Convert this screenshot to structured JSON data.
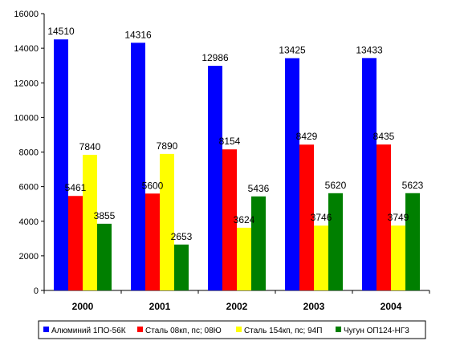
{
  "chart_data": {
    "type": "bar",
    "categories": [
      "2000",
      "2001",
      "2002",
      "2003",
      "2004"
    ],
    "series": [
      {
        "name": "Алюминий 1ПО-56К",
        "color": "#0000ff",
        "values": [
          14510,
          14316,
          12986,
          13425,
          13433
        ]
      },
      {
        "name": "Сталь 08кп, пс; 08Ю",
        "color": "#ff0000",
        "values": [
          5461,
          5600,
          8154,
          8429,
          8435
        ]
      },
      {
        "name": "Сталь 154кп, пс; 94П",
        "color": "#ffff00",
        "values": [
          7840,
          7890,
          3624,
          3746,
          3749
        ]
      },
      {
        "name": "Чугун ОП124-НГ3",
        "color": "#007f00",
        "values": [
          3855,
          2653,
          5436,
          5620,
          5623
        ]
      }
    ],
    "ylim": [
      0,
      16000
    ],
    "yticks": [
      0,
      2000,
      4000,
      6000,
      8000,
      10000,
      12000,
      14000,
      16000
    ],
    "grid": false,
    "legend_position": "bottom",
    "data_labels": true
  }
}
